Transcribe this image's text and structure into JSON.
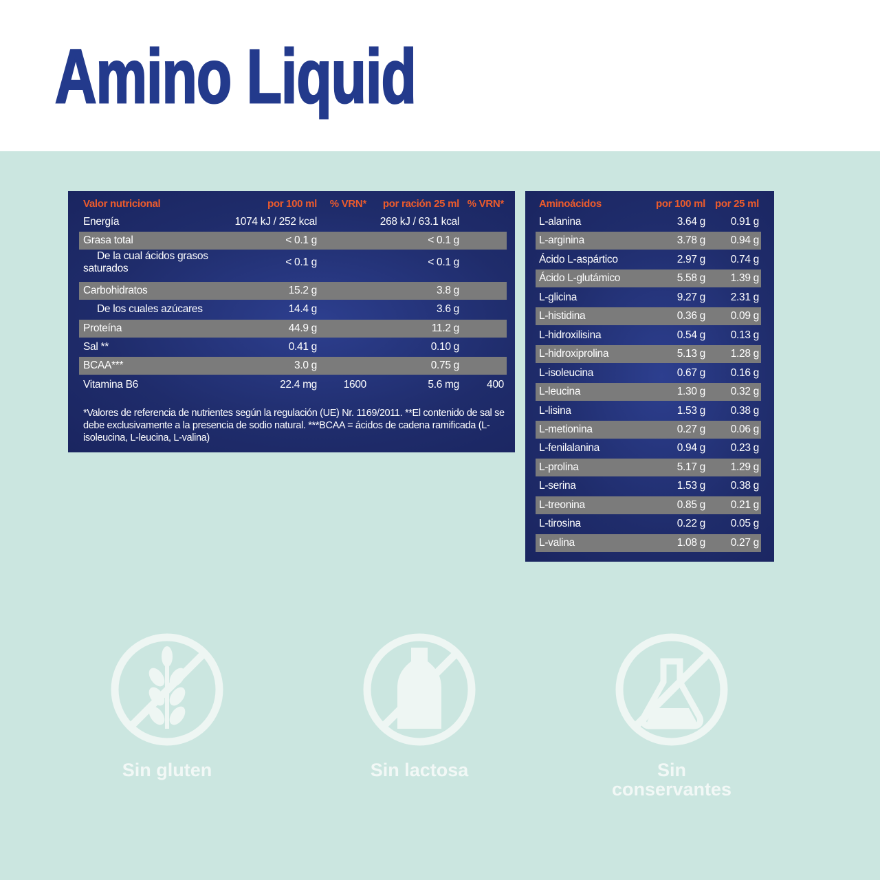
{
  "header": {
    "title": "Amino Liquid"
  },
  "nutrition_table": {
    "columns": [
      "Valor nutricional",
      "por 100 ml",
      "% VRN*",
      "por ración 25 ml",
      "% VRN*"
    ],
    "rows": [
      {
        "label": "Energía",
        "per_100ml": "1074 kJ / 252 kcal",
        "per_serving": "268 kJ / 63.1 kcal"
      },
      {
        "label": "Grasa total",
        "per_100ml": "< 0.1 g",
        "per_serving": "< 0.1 g"
      },
      {
        "label": "De la cual ácidos grasos saturados",
        "per_100ml": "< 0.1 g",
        "per_serving": "< 0.1 g",
        "sub": true
      },
      {
        "label": "Carbohidratos",
        "per_100ml": "15.2 g",
        "per_serving": "3.8 g"
      },
      {
        "label": "De los cuales azúcares",
        "per_100ml": "14.4 g",
        "per_serving": "3.6 g",
        "sub": true
      },
      {
        "label": "Proteína",
        "per_100ml": "44.9 g",
        "per_serving": "11.2 g"
      },
      {
        "label": "Sal **",
        "per_100ml": "0.41 g",
        "per_serving": "0.10 g"
      },
      {
        "label": "BCAA***",
        "per_100ml": "3.0 g",
        "per_serving": "0.75 g"
      },
      {
        "label": "Vitamina B6",
        "per_100ml": "22.4 mg",
        "vrn_100ml": "1600",
        "per_serving": "5.6 mg",
        "vrn_serving": "400"
      }
    ],
    "footnote": "*Valores de referencia de nutrientes según la regulación (UE) Nr. 1169/2011. **El contenido de sal se debe exclusivamente a la presencia de sodio natural. ***BCAA = ácidos de cadena ramificada (L-isoleucina, L-leucina, L-valina)"
  },
  "amino_table": {
    "columns": [
      "Aminoácidos",
      "por 100 ml",
      "por 25 ml"
    ],
    "rows": [
      [
        "L-alanina",
        "3.64 g",
        "0.91 g"
      ],
      [
        "L-arginina",
        "3.78 g",
        "0.94 g"
      ],
      [
        "Ácido L-aspártico",
        "2.97 g",
        "0.74 g"
      ],
      [
        "Ácido L-glutámico",
        "5.58 g",
        "1.39 g"
      ],
      [
        "L-glicina",
        "9.27 g",
        "2.31 g"
      ],
      [
        "L-histidina",
        "0.36 g",
        "0.09 g"
      ],
      [
        "L-hidroxilisina",
        "0.54 g",
        "0.13 g"
      ],
      [
        "L-hidroxiprolina",
        "5.13 g",
        "1.28 g"
      ],
      [
        "L-isoleucina",
        "0.67 g",
        "0.16 g"
      ],
      [
        "L-leucina",
        "1.30 g",
        "0.32 g"
      ],
      [
        "L-lisina",
        "1.53 g",
        "0.38 g"
      ],
      [
        "L-metionina",
        "0.27 g",
        "0.06 g"
      ],
      [
        "L-fenilalanina",
        "0.94 g",
        "0.23 g"
      ],
      [
        "L-prolina",
        "5.17 g",
        "1.29 g"
      ],
      [
        "L-serina",
        "1.53 g",
        "0.38 g"
      ],
      [
        "L-treonina",
        "0.85 g",
        "0.21 g"
      ],
      [
        "L-tirosina",
        "0.22 g",
        "0.05 g"
      ],
      [
        "L-valina",
        "1.08 g",
        "0.27 g"
      ]
    ]
  },
  "badges": [
    "Sin gluten",
    "Sin lactosa",
    "Sin conservantes"
  ]
}
